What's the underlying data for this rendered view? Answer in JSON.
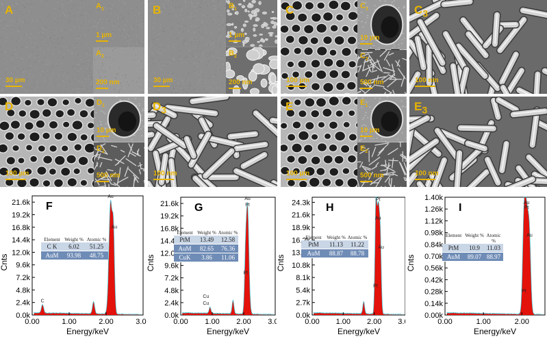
{
  "sem_panels": [
    {
      "id": "A",
      "label": "A",
      "scale": "30 µm",
      "subs": [
        {
          "label": "A",
          "sub": "1",
          "scale": "1 µm"
        },
        {
          "label": "A",
          "sub": "2",
          "scale": "200 nm"
        }
      ]
    },
    {
      "id": "B",
      "label": "B",
      "scale": "30 µm",
      "subs": [
        {
          "label": "B",
          "sub": "1",
          "scale": "1 µm"
        },
        {
          "label": "B",
          "sub": "2",
          "scale": "200 nm"
        }
      ]
    },
    {
      "id": "C",
      "label": "C",
      "scale": "100 µm",
      "subs": [
        {
          "label": "C",
          "sub": "1",
          "scale": "10 µm"
        },
        {
          "label": "C",
          "sub": "2",
          "scale": "500 nm"
        }
      ]
    },
    {
      "id": "C3",
      "label": "C",
      "sub": "3",
      "scale": "100 nm"
    },
    {
      "id": "D",
      "label": "D",
      "scale": "100 µm",
      "subs": [
        {
          "label": "D",
          "sub": "1",
          "scale": "10 µm"
        },
        {
          "label": "D",
          "sub": "2",
          "scale": "500 nm"
        }
      ]
    },
    {
      "id": "D3",
      "label": "D",
      "sub": "3",
      "scale": "100 nm"
    },
    {
      "id": "E",
      "label": "E",
      "scale": "100 µm",
      "subs": [
        {
          "label": "E",
          "sub": "1",
          "scale": "10 µm"
        },
        {
          "label": "E",
          "sub": "2",
          "scale": "500 nm"
        }
      ]
    },
    {
      "id": "E3",
      "label": "E",
      "sub": "3",
      "scale": "100 nm"
    }
  ],
  "chart_data": [
    {
      "type": "area",
      "panel": "F",
      "xlabel": "Energy/keV",
      "ylabel": "Cnts",
      "xlim": [
        0,
        3
      ],
      "xticks": [
        "0.00",
        "1.00",
        "2.00",
        "3.00"
      ],
      "yticks": [
        "0.0k",
        "2.4k",
        "4.8k",
        "7.2k",
        "9.6k",
        "12.0k",
        "14.4k",
        "16.8k",
        "19.2k",
        "21.6k"
      ],
      "ymax": 22.8,
      "peaks": [
        {
          "x": 0.28,
          "y": 1.6,
          "w": 0.03
        },
        {
          "x": 1.66,
          "y": 2.3,
          "w": 0.03
        },
        {
          "x": 2.12,
          "y": 21.3,
          "w": 0.045
        },
        {
          "x": 2.2,
          "y": 13.5,
          "w": 0.03
        }
      ],
      "peak_labels": [
        {
          "text": "C",
          "x": 0.28,
          "y": 2.4
        },
        {
          "text": "Au",
          "x": 2.12,
          "y": 22.4
        },
        {
          "text": "Au",
          "x": 2.22,
          "y": 16.6
        }
      ],
      "table": {
        "headers": [
          "Element",
          "Weight %",
          "Atomic %"
        ],
        "rows": [
          [
            "C K",
            "6.02",
            "51.25"
          ],
          [
            "AuM",
            "93.98",
            "48.75"
          ]
        ]
      }
    },
    {
      "type": "area",
      "panel": "G",
      "xlabel": "Energy/keV",
      "ylabel": "Cnts",
      "xlim": [
        0,
        3
      ],
      "xticks": [
        "0.00",
        "1.00",
        "2.00",
        "3.00"
      ],
      "yticks": [
        "0.0k",
        "2.4k",
        "4.8k",
        "7.2k",
        "9.6k",
        "12.0k",
        "14.4k",
        "16.8k",
        "19.2k",
        "21.6k"
      ],
      "ymax": 22.8,
      "peaks": [
        {
          "x": 0.93,
          "y": 1.2,
          "w": 0.03
        },
        {
          "x": 1.66,
          "y": 2.6,
          "w": 0.03
        },
        {
          "x": 2.05,
          "y": 7.0,
          "w": 0.03
        },
        {
          "x": 2.12,
          "y": 21.0,
          "w": 0.045
        }
      ],
      "peak_labels": [
        {
          "text": "Cu",
          "x": 0.8,
          "y": 3.3
        },
        {
          "text": "Cu",
          "x": 0.8,
          "y": 2.0
        },
        {
          "text": "Au",
          "x": 2.12,
          "y": 22.3
        },
        {
          "text": "Pt",
          "x": 2.12,
          "y": 21.1
        },
        {
          "text": "Pt",
          "x": 2.06,
          "y": 7.9
        }
      ],
      "table": {
        "headers": [
          "Element",
          "Weight %",
          "Atomic %"
        ],
        "rows": [
          [
            "PtM",
            "13.49",
            "12.58"
          ],
          [
            "AuM",
            "82.65",
            "76.36"
          ],
          [
            "CuK",
            "3.86",
            "11.06"
          ]
        ]
      }
    },
    {
      "type": "area",
      "panel": "H",
      "xlabel": "Energy/keV",
      "ylabel": "Cnts",
      "xlim": [
        0,
        3
      ],
      "xticks": [
        "0.00",
        "1.00",
        "2.00",
        "3.00"
      ],
      "yticks": [
        "0.0k",
        "2.7k",
        "5.4k",
        "8.1k",
        "10.8k",
        "13.5k",
        "16.2k",
        "18.9k",
        "21.6k",
        "24.3k"
      ],
      "ymax": 25.4,
      "peaks": [
        {
          "x": 1.66,
          "y": 2.6,
          "w": 0.03
        },
        {
          "x": 2.05,
          "y": 20.0,
          "w": 0.03
        },
        {
          "x": 2.13,
          "y": 23.0,
          "w": 0.045
        },
        {
          "x": 2.2,
          "y": 11.0,
          "w": 0.03
        }
      ],
      "peak_labels": [
        {
          "text": "Pt",
          "x": 2.12,
          "y": 24.6
        },
        {
          "text": "Au",
          "x": 2.12,
          "y": 20.6
        },
        {
          "text": "Au",
          "x": 2.22,
          "y": 14.3
        },
        {
          "text": "Pt",
          "x": 2.04,
          "y": 6.0
        }
      ],
      "table": {
        "headers": [
          "Element",
          "Weight %",
          "Atomic %"
        ],
        "rows": [
          [
            "PtM",
            "11.13",
            "11.22"
          ],
          [
            "AuM",
            "88.87",
            "88.78"
          ]
        ]
      }
    },
    {
      "type": "area",
      "panel": "I",
      "xlabel": "Energy/keV",
      "ylabel": "Cnts",
      "xlim": [
        0,
        2.6
      ],
      "xticks": [
        "0.00",
        "1.00",
        "2.00"
      ],
      "yticks": [
        "0.00k",
        "0.14k",
        "0.28k",
        "0.42k",
        "0.56k",
        "0.70k",
        "0.84k",
        "0.98k",
        "1.12k",
        "1.26k",
        "1.40k"
      ],
      "ymax": 1.4,
      "peaks": [
        {
          "x": 2.05,
          "y": 0.82,
          "w": 0.035
        },
        {
          "x": 2.12,
          "y": 1.2,
          "w": 0.05
        },
        {
          "x": 2.2,
          "y": 0.7,
          "w": 0.035
        }
      ],
      "peak_labels": [
        {
          "text": "Au",
          "x": 2.12,
          "y": 1.32
        },
        {
          "text": "Pt",
          "x": 2.12,
          "y": 1.26
        },
        {
          "text": "Au",
          "x": 2.2,
          "y": 0.93
        },
        {
          "text": "Pt",
          "x": 2.05,
          "y": 0.27
        }
      ],
      "table": {
        "headers": [
          "Element",
          "Weight %",
          "Atomic %"
        ],
        "rows": [
          [
            "PtM",
            "10.9",
            "11.03"
          ],
          [
            "AuM",
            "89.07",
            "88.97"
          ]
        ]
      }
    }
  ],
  "colors": {
    "label": "#e8b400",
    "spectrum_fill": "#e3120b",
    "spectrum_edge": "#39c6d6",
    "table_light": "#c9d6e6",
    "table_dark": "#6f8cb6"
  }
}
